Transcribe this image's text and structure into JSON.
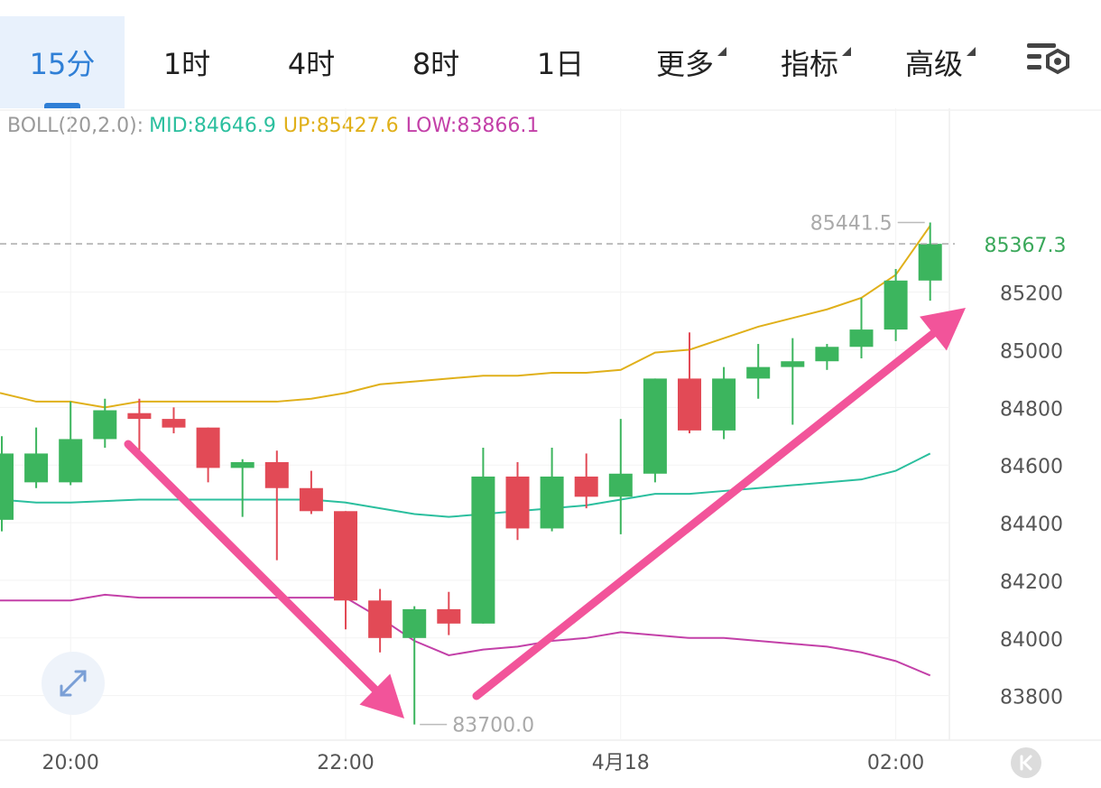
{
  "tabs": [
    {
      "label": "15分",
      "active": true,
      "dropdown": false
    },
    {
      "label": "1时",
      "active": false,
      "dropdown": false
    },
    {
      "label": "4时",
      "active": false,
      "dropdown": false
    },
    {
      "label": "8时",
      "active": false,
      "dropdown": false
    },
    {
      "label": "1日",
      "active": false,
      "dropdown": false
    },
    {
      "label": "更多",
      "active": false,
      "dropdown": true
    },
    {
      "label": "指标",
      "active": false,
      "dropdown": true
    },
    {
      "label": "高级",
      "active": false,
      "dropdown": true
    }
  ],
  "settings_icon": "chart-settings-icon",
  "boll": {
    "label": "BOLL(20,2.0):",
    "mid": "MID:84646.9",
    "up": "UP:85427.6",
    "low": "LOW:83866.1"
  },
  "colors": {
    "up": "#3cb55e",
    "down": "#e24a56",
    "mid": "#2bbf9e",
    "upper": "#e0b01a",
    "lower": "#c340a8",
    "arrow": "#f2549a",
    "accent": "#2f7fd6"
  },
  "chart_data": {
    "type": "candlestick",
    "ylim": [
      83680,
      85540
    ],
    "y_ticks": [
      85200,
      85000,
      84800,
      84600,
      84400,
      84200,
      84000,
      83800
    ],
    "x_ticks": [
      {
        "label": "20:00",
        "index": 2
      },
      {
        "label": "22:00",
        "index": 10
      },
      {
        "label": "4月18",
        "index": 18
      },
      {
        "label": "02:00",
        "index": 26
      }
    ],
    "current_price": 85367.3,
    "max_label": "85441.5",
    "max_value": 85441.5,
    "max_index": 27,
    "min_label": "83700.0",
    "min_value": 83700.0,
    "min_index": 12,
    "candles": [
      {
        "o": 84410,
        "h": 84700,
        "l": 84370,
        "c": 84640
      },
      {
        "o": 84540,
        "h": 84730,
        "l": 84520,
        "c": 84640
      },
      {
        "o": 84540,
        "h": 84820,
        "l": 84530,
        "c": 84690
      },
      {
        "o": 84690,
        "h": 84830,
        "l": 84660,
        "c": 84790
      },
      {
        "o": 84780,
        "h": 84830,
        "l": 84640,
        "c": 84760
      },
      {
        "o": 84760,
        "h": 84800,
        "l": 84710,
        "c": 84730
      },
      {
        "o": 84730,
        "h": 84730,
        "l": 84540,
        "c": 84590
      },
      {
        "o": 84590,
        "h": 84620,
        "l": 84420,
        "c": 84610
      },
      {
        "o": 84610,
        "h": 84650,
        "l": 84270,
        "c": 84520
      },
      {
        "o": 84520,
        "h": 84580,
        "l": 84430,
        "c": 84440
      },
      {
        "o": 84440,
        "h": 84440,
        "l": 84030,
        "c": 84130
      },
      {
        "o": 84130,
        "h": 84170,
        "l": 83950,
        "c": 84000
      },
      {
        "o": 84000,
        "h": 84110,
        "l": 83700,
        "c": 84100
      },
      {
        "o": 84100,
        "h": 84160,
        "l": 84010,
        "c": 84050
      },
      {
        "o": 84050,
        "h": 84660,
        "l": 84050,
        "c": 84560
      },
      {
        "o": 84560,
        "h": 84610,
        "l": 84340,
        "c": 84380
      },
      {
        "o": 84380,
        "h": 84660,
        "l": 84370,
        "c": 84560
      },
      {
        "o": 84560,
        "h": 84640,
        "l": 84450,
        "c": 84490
      },
      {
        "o": 84490,
        "h": 84760,
        "l": 84360,
        "c": 84570
      },
      {
        "o": 84570,
        "h": 84900,
        "l": 84540,
        "c": 84900
      },
      {
        "o": 84900,
        "h": 85060,
        "l": 84710,
        "c": 84720
      },
      {
        "o": 84720,
        "h": 84940,
        "l": 84690,
        "c": 84900
      },
      {
        "o": 84900,
        "h": 85020,
        "l": 84830,
        "c": 84940
      },
      {
        "o": 84940,
        "h": 85040,
        "l": 84740,
        "c": 84960
      },
      {
        "o": 84960,
        "h": 85020,
        "l": 84930,
        "c": 85010
      },
      {
        "o": 85010,
        "h": 85180,
        "l": 84970,
        "c": 85070
      },
      {
        "o": 85070,
        "h": 85280,
        "l": 85030,
        "c": 85240
      },
      {
        "o": 85240,
        "h": 85441.5,
        "l": 85170,
        "c": 85367.3
      }
    ],
    "mid_band": [
      84480,
      84470,
      84470,
      84475,
      84480,
      84480,
      84480,
      84480,
      84480,
      84480,
      84470,
      84450,
      84430,
      84420,
      84430,
      84440,
      84450,
      84460,
      84480,
      84500,
      84500,
      84510,
      84520,
      84530,
      84540,
      84550,
      84580,
      84640
    ],
    "upper_band": [
      84850,
      84820,
      84820,
      84800,
      84820,
      84820,
      84820,
      84820,
      84820,
      84830,
      84850,
      84880,
      84890,
      84900,
      84910,
      84910,
      84920,
      84920,
      84930,
      84990,
      85000,
      85040,
      85080,
      85110,
      85140,
      85180,
      85260,
      85430
    ],
    "lower_band": [
      84130,
      84130,
      84130,
      84150,
      84140,
      84140,
      84140,
      84140,
      84140,
      84140,
      84140,
      84070,
      83990,
      83940,
      83960,
      83970,
      83990,
      84000,
      84020,
      84010,
      84000,
      84000,
      83990,
      83980,
      83970,
      83950,
      83920,
      83870
    ]
  }
}
